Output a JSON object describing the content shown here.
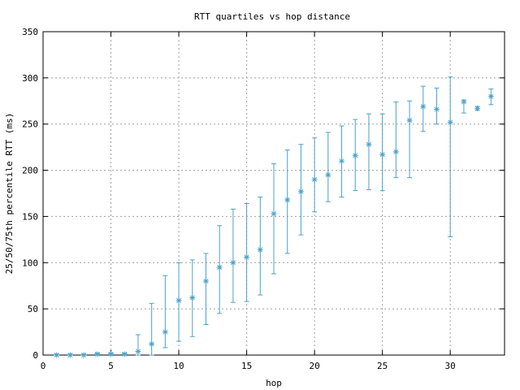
{
  "chart_data": {
    "type": "scatter",
    "title": "RTT quartiles vs hop distance",
    "xlabel": "hop",
    "ylabel": "25/50/75th percentile RTT (ms)",
    "xlim": [
      0,
      34
    ],
    "ylim": [
      0,
      350
    ],
    "xticks": [
      0,
      5,
      10,
      15,
      20,
      25,
      30
    ],
    "yticks": [
      0,
      50,
      100,
      150,
      200,
      250,
      300,
      350
    ],
    "grid": true,
    "legend": "none",
    "color": "#4aa3c8",
    "series": [
      {
        "hop": [
          1,
          2,
          3,
          4,
          5,
          6,
          7,
          8,
          9,
          10,
          11,
          12,
          13,
          14,
          15,
          16,
          17,
          18,
          19,
          20,
          21,
          22,
          23,
          24,
          25,
          26,
          27,
          28,
          29,
          30,
          31,
          32,
          33
        ],
        "p25": [
          0,
          0,
          0,
          0,
          0,
          0,
          0,
          0,
          8,
          15,
          20,
          33,
          45,
          57,
          58,
          65,
          88,
          110,
          130,
          155,
          166,
          171,
          178,
          179,
          178,
          192,
          192,
          242,
          250,
          128,
          262,
          265,
          271
        ],
        "median": [
          0,
          0,
          0,
          1,
          1,
          1,
          4,
          12,
          25,
          59,
          62,
          80,
          95,
          100,
          106,
          114,
          153,
          168,
          177,
          190,
          195,
          210,
          216,
          228,
          217,
          220,
          254,
          269,
          266,
          252,
          274,
          267,
          280
        ],
        "p75": [
          1,
          1,
          1,
          2,
          2,
          2,
          22,
          56,
          86,
          100,
          103,
          110,
          140,
          158,
          164,
          171,
          207,
          222,
          228,
          235,
          241,
          248,
          255,
          261,
          261,
          274,
          275,
          291,
          289,
          301,
          276,
          269,
          288
        ]
      }
    ]
  }
}
